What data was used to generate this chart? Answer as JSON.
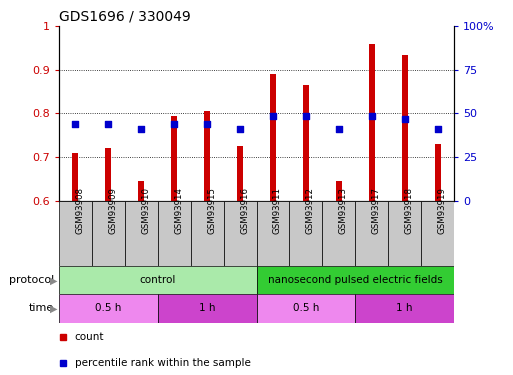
{
  "title": "GDS1696 / 330049",
  "samples": [
    "GSM93908",
    "GSM93909",
    "GSM93910",
    "GSM93914",
    "GSM93915",
    "GSM93916",
    "GSM93911",
    "GSM93912",
    "GSM93913",
    "GSM93917",
    "GSM93918",
    "GSM93919"
  ],
  "bar_values": [
    0.71,
    0.72,
    0.645,
    0.795,
    0.805,
    0.725,
    0.89,
    0.865,
    0.645,
    0.96,
    0.935,
    0.73
  ],
  "dot_values": [
    0.775,
    0.775,
    0.765,
    0.775,
    0.775,
    0.765,
    0.795,
    0.793,
    0.765,
    0.793,
    0.787,
    0.765
  ],
  "bar_color": "#cc0000",
  "dot_color": "#0000cc",
  "ylim_left": [
    0.6,
    1.0
  ],
  "ylim_right": [
    0,
    100
  ],
  "yticks_left": [
    0.6,
    0.7,
    0.8,
    0.9,
    1.0
  ],
  "ytick_labels_left": [
    "0.6",
    "0.7",
    "0.8",
    "0.9",
    "1"
  ],
  "yticks_right": [
    0,
    25,
    50,
    75,
    100
  ],
  "ytick_labels_right": [
    "0",
    "25",
    "50",
    "75",
    "100%"
  ],
  "protocol_row": [
    {
      "label": "control",
      "start": 0,
      "end": 6,
      "color": "#aaeaaa"
    },
    {
      "label": "nanosecond pulsed electric fields",
      "start": 6,
      "end": 12,
      "color": "#33cc33"
    }
  ],
  "time_row": [
    {
      "label": "0.5 h",
      "start": 0,
      "end": 3,
      "color": "#ee88ee"
    },
    {
      "label": "1 h",
      "start": 3,
      "end": 6,
      "color": "#cc44cc"
    },
    {
      "label": "0.5 h",
      "start": 6,
      "end": 9,
      "color": "#ee88ee"
    },
    {
      "label": "1 h",
      "start": 9,
      "end": 12,
      "color": "#cc44cc"
    }
  ],
  "legend_items": [
    {
      "label": "count",
      "color": "#cc0000"
    },
    {
      "label": "percentile rank within the sample",
      "color": "#0000cc"
    }
  ],
  "background_color": "#ffffff",
  "bar_bottom": 0.6,
  "xlabel_bg": "#c8c8c8",
  "bar_width": 0.18
}
